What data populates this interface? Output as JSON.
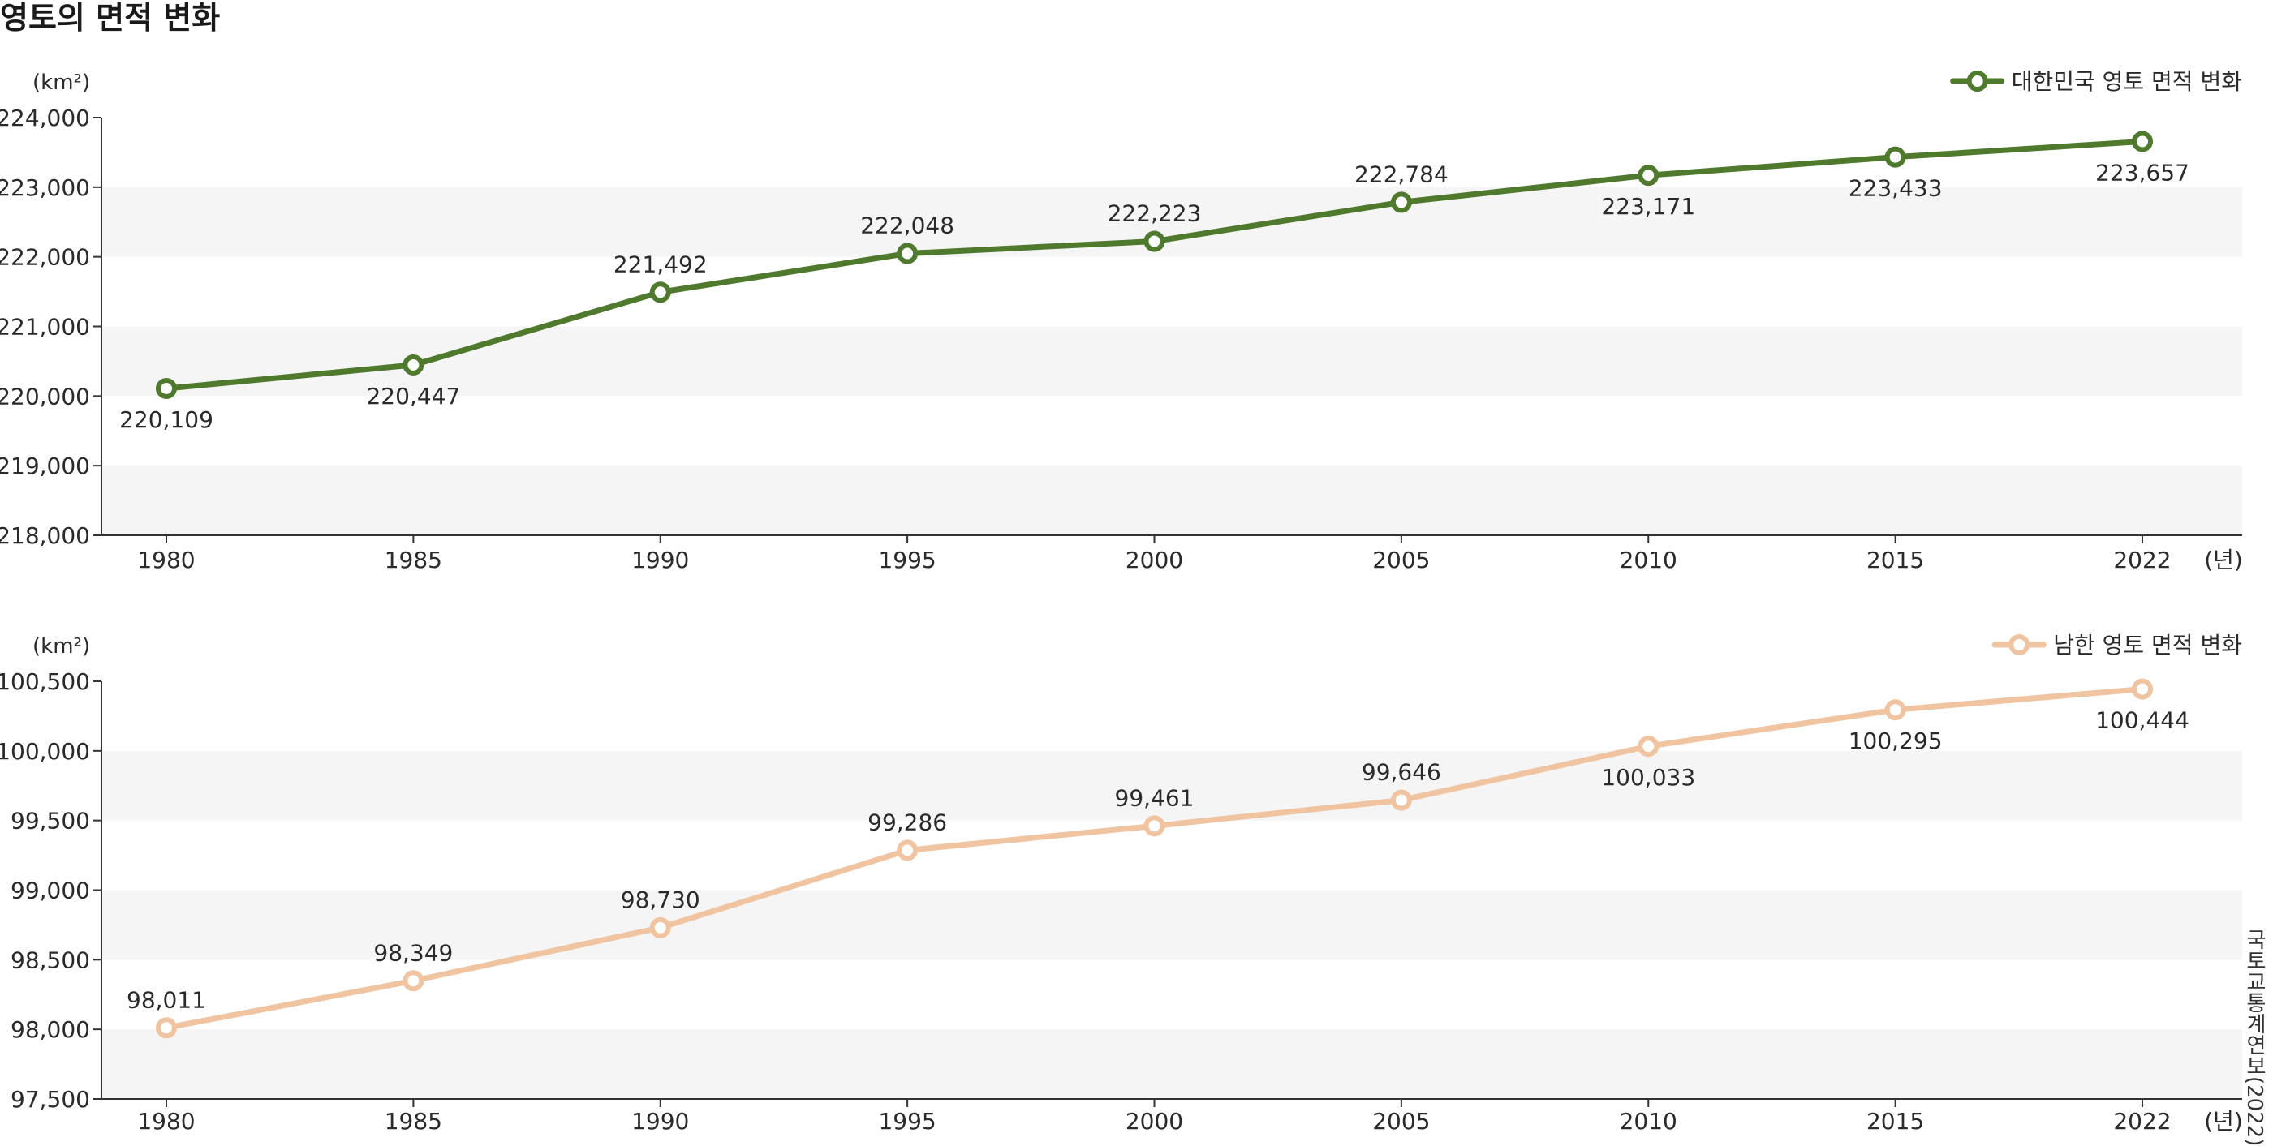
{
  "title": "영토의 면적 변화",
  "source": "국토교통계연보(2022)",
  "colors": {
    "series1": "#4f7a2e",
    "series2": "#f0c4a0",
    "band": "#f5f5f5",
    "axis": "#333333"
  },
  "chart_data": [
    {
      "type": "line",
      "unit_label": "(km²)",
      "xunit_label": "(년)",
      "x": [
        "1980",
        "1985",
        "1990",
        "1995",
        "2000",
        "2005",
        "2010",
        "2015",
        "2022"
      ],
      "series": [
        {
          "name": "대한민국 영토 면적 변화",
          "values": [
            220109,
            220447,
            221492,
            222048,
            222223,
            222784,
            223171,
            223433,
            223657
          ]
        }
      ],
      "data_labels": [
        "220,109",
        "220,447",
        "221,492",
        "222,048",
        "222,223",
        "222,784",
        "223,171",
        "223,433",
        "223,657"
      ],
      "label_placement": [
        "below",
        "below",
        "above",
        "above",
        "above",
        "above",
        "below",
        "below",
        "below"
      ],
      "ylim": [
        218000,
        224000
      ],
      "yticks": [
        218000,
        219000,
        220000,
        221000,
        222000,
        223000,
        224000
      ],
      "ytick_labels": [
        "218,000",
        "219,000",
        "220,000",
        "221,000",
        "222,000",
        "223,000",
        "224,000"
      ],
      "grid": "alternating bands",
      "legend": "top-right",
      "marker": "open circle"
    },
    {
      "type": "line",
      "unit_label": "(km²)",
      "xunit_label": "(년)",
      "x": [
        "1980",
        "1985",
        "1990",
        "1995",
        "2000",
        "2005",
        "2010",
        "2015",
        "2022"
      ],
      "series": [
        {
          "name": "남한 영토 면적 변화",
          "values": [
            98011,
            98349,
            98730,
            99286,
            99461,
            99646,
            100033,
            100295,
            100444
          ]
        }
      ],
      "data_labels": [
        "98,011",
        "98,349",
        "98,730",
        "99,286",
        "99,461",
        "99,646",
        "100,033",
        "100,295",
        "100,444"
      ],
      "label_placement": [
        "above",
        "above",
        "above",
        "above",
        "above",
        "above",
        "below",
        "below",
        "below"
      ],
      "ylim": [
        97500,
        100500
      ],
      "yticks": [
        97500,
        98000,
        98500,
        99000,
        99500,
        100000,
        100500
      ],
      "ytick_labels": [
        "97,500",
        "98,000",
        "98,500",
        "99,000",
        "99,500",
        "100,000",
        "100,500"
      ],
      "grid": "alternating bands",
      "legend": "top-right",
      "marker": "open circle"
    }
  ]
}
